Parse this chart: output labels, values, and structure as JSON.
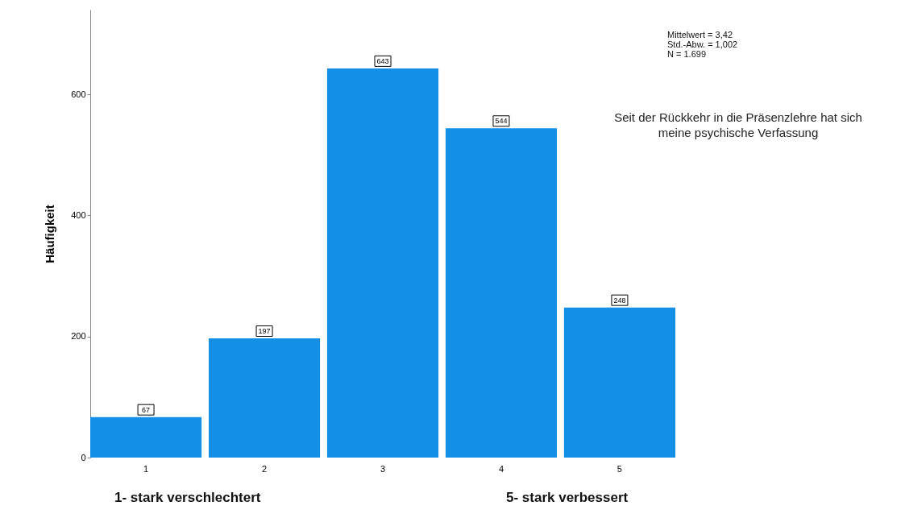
{
  "chart_data": {
    "type": "bar",
    "title": "Seit der Rückkehr in die Präsenzlehre hat sich meine psychische Verfassung",
    "ylabel": "Häufigkeit",
    "categories": [
      "1",
      "2",
      "3",
      "4",
      "5"
    ],
    "values": [
      67,
      197,
      643,
      544,
      248
    ],
    "color": "#1390e6",
    "data_labels": true,
    "ylim": [
      0,
      740
    ],
    "yticks": [
      0,
      200,
      400,
      600
    ],
    "grid": false,
    "annotations": [
      "Mittelwert = 3,42",
      "Std.-Abw. = 1,002",
      "N = 1.699",
      "1- stark verschlechtert",
      "5- stark verbessert"
    ]
  }
}
